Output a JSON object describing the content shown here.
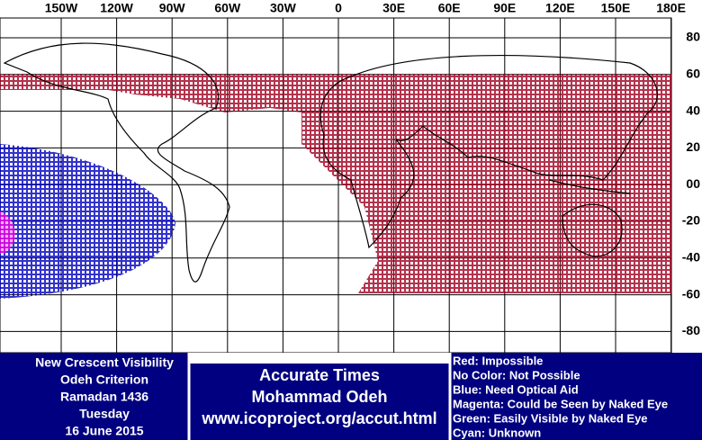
{
  "map": {
    "lon_labels": [
      "150W",
      "120W",
      "90W",
      "60W",
      "30W",
      "0",
      "30E",
      "60E",
      "90E",
      "120E",
      "150E",
      "180E"
    ],
    "lat_labels": [
      "80",
      "60",
      "40",
      "20",
      "00",
      "-20",
      "-40",
      "-60",
      "-80"
    ]
  },
  "info": {
    "left": [
      "New Crescent Visibility",
      "Odeh Criterion",
      "Ramadan 1436",
      "Tuesday",
      "16 June 2015"
    ],
    "center": [
      "Accurate Times",
      "Mohammad Odeh",
      "www.icoproject.org/accut.html"
    ],
    "legend": [
      "Red: Impossible",
      "No Color: Not Possible",
      "Blue: Need Optical Aid",
      "Magenta: Could be Seen by Naked Eye",
      "Green: Easily Visible by Naked Eye",
      "Cyan: Unknown"
    ]
  }
}
